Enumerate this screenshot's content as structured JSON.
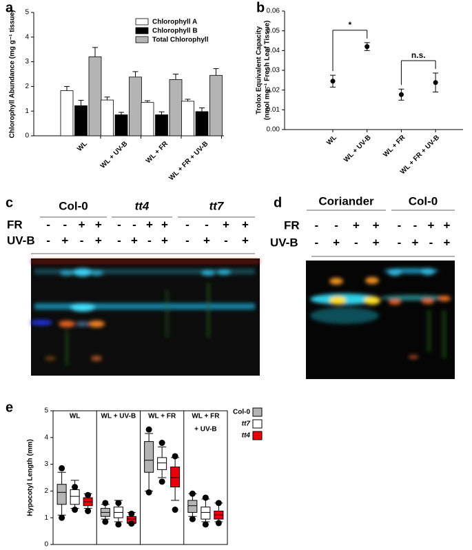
{
  "chart_data": [
    {
      "type": "bar",
      "label": "a",
      "ylabel": "Chlorophyll Abundance (mg g⁻¹ tissue)",
      "categories": [
        "WL",
        "WL + UV-B",
        "WL + FR",
        "WL + FR + UV-B"
      ],
      "series": [
        {
          "name": "Chlorophyll A",
          "color": "#ffffff",
          "values": [
            1.83,
            1.45,
            1.35,
            1.4
          ],
          "errors": [
            0.17,
            0.12,
            0.07,
            0.08
          ]
        },
        {
          "name": "Chlorophyll B",
          "color": "#000000",
          "values": [
            1.22,
            0.85,
            0.85,
            0.98
          ],
          "errors": [
            0.22,
            0.1,
            0.12,
            0.15
          ]
        },
        {
          "name": "Total Chlorophyll",
          "color": "#b4b4b4",
          "values": [
            3.2,
            2.38,
            2.28,
            2.45
          ],
          "errors": [
            0.38,
            0.22,
            0.22,
            0.27
          ]
        }
      ],
      "ylim": [
        0,
        5
      ],
      "yticks": [
        0,
        1,
        2,
        3,
        4,
        5
      ]
    },
    {
      "type": "point",
      "label": "b",
      "ylabel": [
        "Trolox Equivalent Capacity",
        "(nmol mg⁻¹ Fresh Leaf Tissue)"
      ],
      "categories": [
        "WL",
        "WL + UV-B",
        "WL + FR",
        "WL + FR + UV-B"
      ],
      "values": [
        0.0245,
        0.042,
        0.0177,
        0.0238
      ],
      "errors": [
        0.003,
        0.002,
        0.0028,
        0.0048
      ],
      "color": "#000000",
      "annotations": [
        "*",
        "n.s."
      ],
      "ylim": [
        0,
        0.06
      ],
      "yticks": [
        {
          "value": 0,
          "label": "0.00"
        },
        {
          "value": 0.01,
          "label": "0.01"
        },
        {
          "value": 0.02,
          "label": "0.02"
        },
        {
          "value": 0.03,
          "label": "0.03"
        },
        {
          "value": 0.04,
          "label": "0.04"
        },
        {
          "value": 0.05,
          "label": "0.05"
        },
        {
          "value": 0.06,
          "label": "0.06"
        }
      ]
    },
    {
      "type": "box",
      "label": "e",
      "ylabel": "Hypocotyl Length (mm)",
      "categories": [
        "WL",
        "WL + UV-B",
        "WL + FR",
        [
          "WL + FR",
          "+ UV-B"
        ]
      ],
      "series": [
        {
          "name": "Col-0",
          "color": "#b4b4b4",
          "boxes": [
            {
              "whisker_low": 1.1,
              "q1": 1.5,
              "median": 1.95,
              "q3": 2.25,
              "whisker_high": 2.7,
              "outliers": [
                1.0,
                2.85
              ]
            },
            {
              "whisker_low": 0.95,
              "q1": 1.05,
              "median": 1.2,
              "q3": 1.35,
              "whisker_high": 1.5,
              "outliers": [
                0.85,
                1.55
              ]
            },
            {
              "whisker_low": 2.0,
              "q1": 2.7,
              "median": 3.15,
              "q3": 3.85,
              "whisker_high": 4.15,
              "outliers": [
                1.95,
                4.3
              ]
            },
            {
              "whisker_low": 1.05,
              "q1": 1.2,
              "median": 1.45,
              "q3": 1.65,
              "whisker_high": 1.9,
              "outliers": [
                0.95,
                1.9
              ]
            }
          ]
        },
        {
          "name": "tt7",
          "color": "#ffffff",
          "boxes": [
            {
              "whisker_low": 1.35,
              "q1": 1.5,
              "median": 1.8,
              "q3": 2.05,
              "whisker_high": 2.4,
              "outliers": [
                1.3,
                2.15
              ]
            },
            {
              "whisker_low": 0.85,
              "q1": 1.0,
              "median": 1.2,
              "q3": 1.4,
              "whisker_high": 1.65,
              "outliers": [
                0.75,
                1.55
              ]
            },
            {
              "whisker_low": 2.5,
              "q1": 2.8,
              "median": 3.05,
              "q3": 3.25,
              "whisker_high": 3.65,
              "outliers": [
                2.35,
                3.8
              ]
            },
            {
              "whisker_low": 0.85,
              "q1": 0.95,
              "median": 1.2,
              "q3": 1.4,
              "whisker_high": 1.7,
              "outliers": [
                0.75,
                1.75
              ]
            }
          ]
        },
        {
          "name": "tt4",
          "color": "#e8000b",
          "boxes": [
            {
              "whisker_low": 1.35,
              "q1": 1.45,
              "median": 1.6,
              "q3": 1.75,
              "whisker_high": 1.9,
              "outliers": [
                1.25,
                1.85
              ]
            },
            {
              "whisker_low": 0.78,
              "q1": 0.8,
              "median": 0.95,
              "q3": 1.05,
              "whisker_high": 1.2,
              "outliers": [
                0.78,
                1.15
              ]
            },
            {
              "whisker_low": 1.65,
              "q1": 2.15,
              "median": 2.5,
              "q3": 2.9,
              "whisker_high": 3.25,
              "outliers": [
                1.3,
                3.3
              ]
            },
            {
              "whisker_low": 0.85,
              "q1": 0.95,
              "median": 1.1,
              "q3": 1.25,
              "whisker_high": 1.55,
              "outliers": [
                0.8,
                1.55
              ]
            }
          ]
        }
      ],
      "ylim": [
        0,
        5
      ],
      "yticks": [
        0,
        1,
        2,
        3,
        4,
        5
      ]
    }
  ],
  "gels": [
    {
      "label": "c",
      "genotypes": [
        "Col-0",
        "tt4",
        "tt7"
      ],
      "treatments": [
        {
          "name": "FR",
          "signs": [
            "-",
            "-",
            "+",
            "+"
          ]
        },
        {
          "name": "UV-B",
          "signs": [
            "-",
            "+",
            "-",
            "+"
          ]
        }
      ]
    },
    {
      "label": "d",
      "genotypes": [
        "Coriander",
        "Col-0"
      ],
      "treatments": [
        {
          "name": "FR",
          "signs": [
            "-",
            "-",
            "+",
            "+"
          ]
        },
        {
          "name": "UV-B",
          "signs": [
            "-",
            "+",
            "-",
            "+"
          ]
        }
      ]
    }
  ]
}
